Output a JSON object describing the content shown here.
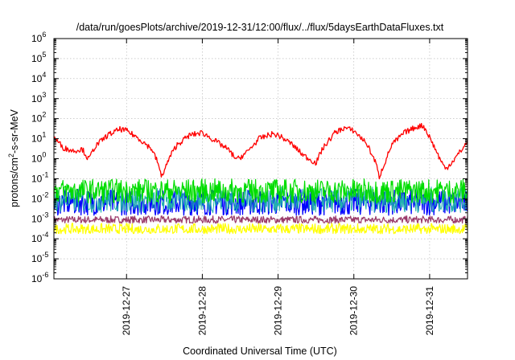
{
  "chart_data": {
    "type": "line",
    "title": "/data/run/goesPlots/archive/2019-12-31/12:00/flux/../flux/5daysEarthDataFluxes.txt",
    "xlabel": "Coordinated Universal Time (UTC)",
    "ylabel": {
      "base": "protons/cm",
      "sup": "2",
      "rest": "-s-sr-MeV"
    },
    "x_range": [
      "2019-12-26T01:00",
      "2019-12-31T12:00"
    ],
    "x_ticks": [
      "2019-12-27",
      "2019-12-28",
      "2019-12-29",
      "2019-12-30",
      "2019-12-31"
    ],
    "y_scale": "log",
    "ylim": [
      1e-06,
      1000000.0
    ],
    "y_ticks": [
      {
        "base": "10",
        "exp": "-6"
      },
      {
        "base": "10",
        "exp": "-5"
      },
      {
        "base": "10",
        "exp": "-4"
      },
      {
        "base": "10",
        "exp": "-3"
      },
      {
        "base": "10",
        "exp": "-2"
      },
      {
        "base": "10",
        "exp": "-1"
      },
      {
        "base": "10",
        "exp": "0"
      },
      {
        "base": "10",
        "exp": "1"
      },
      {
        "base": "10",
        "exp": "2"
      },
      {
        "base": "10",
        "exp": "3"
      },
      {
        "base": "10",
        "exp": "4"
      },
      {
        "base": "10",
        "exp": "5"
      },
      {
        "base": "10",
        "exp": "6"
      }
    ],
    "grid": true,
    "series": [
      {
        "color": "#ff0000",
        "x": [
          "2019-12-26T01:00",
          "2019-12-26T04:00",
          "2019-12-26T07:00",
          "2019-12-26T10:00",
          "2019-12-26T12:00",
          "2019-12-26T14:00",
          "2019-12-26T18:00",
          "2019-12-26T22:00",
          "2019-12-27T00:00",
          "2019-12-27T04:00",
          "2019-12-27T08:00",
          "2019-12-27T10:00",
          "2019-12-27T11:00",
          "2019-12-27T14:00",
          "2019-12-27T16:00",
          "2019-12-27T20:00",
          "2019-12-28T00:00",
          "2019-12-28T04:00",
          "2019-12-28T08:00",
          "2019-12-28T11:00",
          "2019-12-28T14:00",
          "2019-12-28T18:00",
          "2019-12-28T22:00",
          "2019-12-29T00:00",
          "2019-12-29T04:00",
          "2019-12-29T08:00",
          "2019-12-29T12:00",
          "2019-12-29T14:00",
          "2019-12-29T18:00",
          "2019-12-29T21:00",
          "2019-12-30T00:00",
          "2019-12-30T04:00",
          "2019-12-30T07:00",
          "2019-12-30T08:00",
          "2019-12-30T12:00",
          "2019-12-30T16:00",
          "2019-12-30T20:00",
          "2019-12-30T22:00",
          "2019-12-31T00:00",
          "2019-12-31T03:00",
          "2019-12-31T05:00",
          "2019-12-31T08:00",
          "2019-12-31T12:00"
        ],
        "values": [
          12,
          3.5,
          2.5,
          3.0,
          0.9,
          4,
          15,
          30,
          25,
          10,
          3,
          0.6,
          0.12,
          1.5,
          5,
          15,
          20,
          8,
          3,
          0.9,
          2,
          10,
          17,
          15,
          6,
          1.5,
          0.6,
          3,
          20,
          35,
          25,
          6,
          0.6,
          0.12,
          5,
          20,
          40,
          45,
          12,
          1.2,
          0.3,
          1,
          7
        ]
      },
      {
        "color": "#00dd00",
        "x": [
          "2019-12-26T01:00",
          "2019-12-31T12:00"
        ],
        "values": [
          0.03,
          0.03
        ],
        "band_high": 0.1,
        "band_low": 0.006
      },
      {
        "color": "#20b0b0",
        "x": [
          "2019-12-26T01:00",
          "2019-12-31T12:00"
        ],
        "values": [
          0.01,
          0.01
        ],
        "band_high": 0.04,
        "band_low": 0.002
      },
      {
        "color": "#0000ff",
        "x": [
          "2019-12-26T01:00",
          "2019-12-31T12:00"
        ],
        "values": [
          0.008,
          0.008
        ],
        "band_high": 0.03,
        "band_low": 0.0015
      },
      {
        "color": "#9a3a6a",
        "x": [
          "2019-12-26T01:00",
          "2019-12-31T12:00"
        ],
        "values": [
          0.0009,
          0.0009
        ],
        "band_high": 0.0014,
        "band_low": 0.0006
      },
      {
        "color": "#ffff00",
        "x": [
          "2019-12-26T01:00",
          "2019-12-31T12:00"
        ],
        "values": [
          0.0003,
          0.0003
        ],
        "band_high": 0.0006,
        "band_low": 0.00018
      }
    ]
  }
}
